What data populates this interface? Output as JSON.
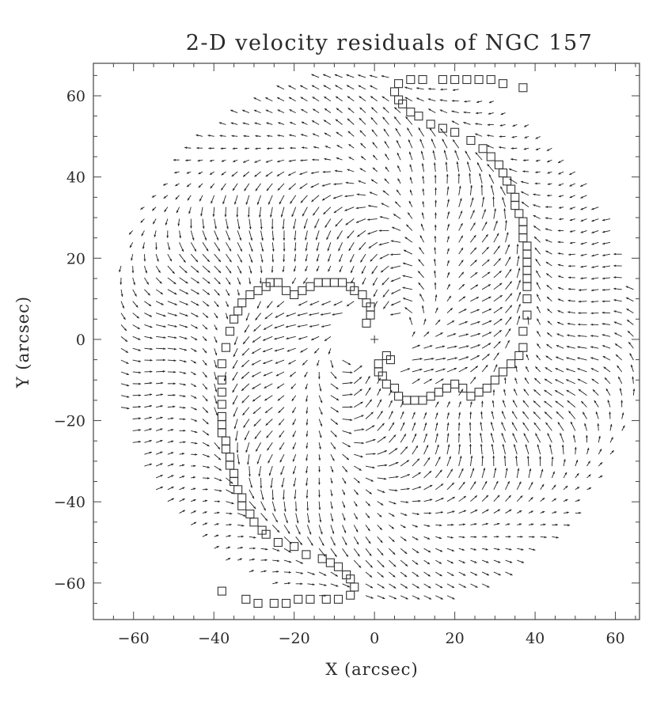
{
  "chart_data": {
    "type": "quiver",
    "title": "2-D velocity residuals of NGC 157",
    "xlabel": "X (arcsec)",
    "ylabel": "Y (arcsec)",
    "xlim": [
      -70,
      66
    ],
    "ylim": [
      68,
      -69
    ],
    "x_ticks": [
      -60,
      -40,
      -20,
      0,
      20,
      40,
      60
    ],
    "y_ticks": [
      -60,
      -40,
      -20,
      0,
      20,
      40,
      60
    ],
    "x_tick_labels": [
      "−60",
      "−40",
      "−20",
      "0",
      "20",
      "40",
      "60"
    ],
    "y_tick_labels": [
      "−60",
      "−40",
      "−20",
      "0",
      "20",
      "40",
      "60"
    ],
    "field": {
      "center": [
        0,
        0
      ],
      "grid_step_arcsec": 2.9,
      "max_radius_arcsec": 66,
      "inner_hole_radius_arcsec": 9,
      "arrow_length_arcsec": 2.6,
      "pattern": "circulating residual flow between two spiral arms"
    },
    "arm_markers": {
      "marker": "open square",
      "arm_1": [
        [
          -38,
          -62
        ],
        [
          -32,
          -64
        ],
        [
          -29,
          -65
        ],
        [
          -25,
          -65
        ],
        [
          -22,
          -65
        ],
        [
          -19,
          -64
        ],
        [
          -16,
          -64
        ],
        [
          -12,
          -64
        ],
        [
          -9,
          -64
        ],
        [
          -6,
          -63
        ],
        [
          -5,
          -61
        ],
        [
          -6,
          -59
        ],
        [
          -7,
          -58
        ],
        [
          -9,
          -56
        ],
        [
          -11,
          -55
        ],
        [
          -13,
          -54
        ],
        [
          -17,
          -53
        ],
        [
          -20,
          -51
        ],
        [
          -24,
          -50
        ],
        [
          -27,
          -48
        ],
        [
          -28,
          -47
        ],
        [
          -30,
          -45
        ],
        [
          -31,
          -43
        ],
        [
          -33,
          -41
        ],
        [
          -33,
          -39
        ],
        [
          -34,
          -37
        ],
        [
          -35,
          -35
        ],
        [
          -35,
          -33
        ],
        [
          -36,
          -31
        ],
        [
          -36,
          -29
        ],
        [
          -37,
          -27
        ],
        [
          -37,
          -25
        ],
        [
          -38,
          -23
        ],
        [
          -38,
          -21
        ],
        [
          -38,
          -19
        ],
        [
          -38,
          -16
        ],
        [
          -38,
          -13
        ],
        [
          -38,
          -10
        ],
        [
          -38,
          -6
        ],
        [
          -37,
          -2
        ],
        [
          -36,
          2
        ],
        [
          -35,
          5
        ],
        [
          -34,
          7
        ],
        [
          -33,
          9
        ],
        [
          -31,
          11
        ],
        [
          -29,
          12
        ],
        [
          -27,
          13
        ],
        [
          -26,
          14
        ],
        [
          -24,
          14
        ],
        [
          -22,
          12
        ],
        [
          -20,
          11
        ],
        [
          -18,
          12
        ],
        [
          -16,
          13
        ],
        [
          -14,
          14
        ],
        [
          -12,
          14
        ],
        [
          -10,
          14
        ],
        [
          -8,
          14
        ],
        [
          -6,
          13
        ],
        [
          -5,
          12
        ],
        [
          -3,
          11
        ],
        [
          -2,
          9
        ],
        [
          -1,
          8
        ],
        [
          -1,
          6
        ],
        [
          -2,
          4
        ]
      ],
      "arm_2": [
        [
          37,
          62
        ],
        [
          32,
          63
        ],
        [
          29,
          64
        ],
        [
          26,
          64
        ],
        [
          23,
          64
        ],
        [
          20,
          64
        ],
        [
          17,
          64
        ],
        [
          12,
          64
        ],
        [
          9,
          64
        ],
        [
          6,
          63
        ],
        [
          5,
          61
        ],
        [
          6,
          59
        ],
        [
          7,
          58
        ],
        [
          9,
          56
        ],
        [
          11,
          55
        ],
        [
          14,
          53
        ],
        [
          17,
          52
        ],
        [
          20,
          51
        ],
        [
          24,
          49
        ],
        [
          27,
          47
        ],
        [
          29,
          45
        ],
        [
          31,
          43
        ],
        [
          32,
          41
        ],
        [
          33,
          39
        ],
        [
          34,
          37
        ],
        [
          35,
          35
        ],
        [
          35,
          33
        ],
        [
          36,
          31
        ],
        [
          37,
          29
        ],
        [
          37,
          27
        ],
        [
          37,
          25
        ],
        [
          38,
          23
        ],
        [
          38,
          21
        ],
        [
          38,
          19
        ],
        [
          38,
          17
        ],
        [
          38,
          15
        ],
        [
          38,
          13
        ],
        [
          38,
          10
        ],
        [
          38,
          6
        ],
        [
          37,
          2
        ],
        [
          37,
          -2
        ],
        [
          36,
          -4
        ],
        [
          34,
          -6
        ],
        [
          32,
          -8
        ],
        [
          30,
          -10
        ],
        [
          28,
          -12
        ],
        [
          26,
          -13
        ],
        [
          24,
          -14
        ],
        [
          22,
          -12
        ],
        [
          20,
          -11
        ],
        [
          18,
          -12
        ],
        [
          16,
          -13
        ],
        [
          14,
          -14
        ],
        [
          12,
          -15
        ],
        [
          10,
          -15
        ],
        [
          8,
          -15
        ],
        [
          6,
          -14
        ],
        [
          5,
          -12
        ],
        [
          3,
          -11
        ],
        [
          2,
          -9
        ],
        [
          1,
          -8
        ],
        [
          1,
          -6
        ],
        [
          3,
          -4
        ],
        [
          4,
          -5
        ]
      ]
    },
    "grid": false,
    "legend": "none"
  }
}
